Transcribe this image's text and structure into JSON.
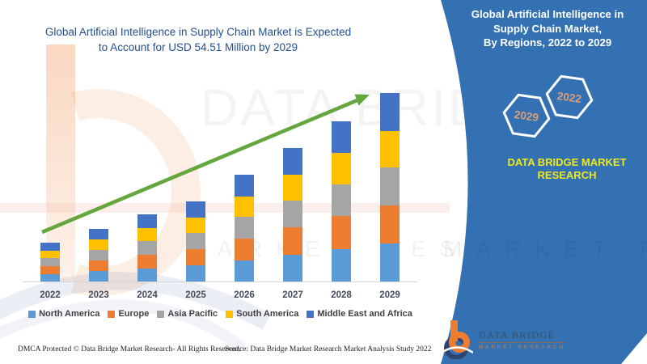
{
  "left_panel": {
    "title_line1": "Global Artificial Intelligence in Supply Chain Market is Expected",
    "title_line2": "to Account for USD 54.51 Million by 2029",
    "footer_left": "DMCA Protected © Data Bridge Market Research- All Rights Reserved.",
    "footer_source": "Source: Data Bridge Market Research Market Analysis Study 2022"
  },
  "chart_data": {
    "type": "bar",
    "stacked": true,
    "title": "Global Artificial Intelligence in Supply Chain Market is Expected to Account for USD 54.51 Million by 2029",
    "unit": "USD Million",
    "categories": [
      "2022",
      "2023",
      "2024",
      "2025",
      "2026",
      "2027",
      "2028",
      "2029"
    ],
    "series": [
      {
        "name": "North America",
        "color": "#5B9BD5",
        "values": [
          2.4,
          3.2,
          4.0,
          4.8,
          6.4,
          8.0,
          9.6,
          11.2
        ]
      },
      {
        "name": "Europe",
        "color": "#ED7D31",
        "values": [
          2.3,
          3.1,
          3.9,
          4.7,
          6.2,
          7.8,
          9.4,
          11.0
        ]
      },
      {
        "name": "Asia Pacific",
        "color": "#A5A5A5",
        "values": [
          2.3,
          3.1,
          4.0,
          4.7,
          6.2,
          7.8,
          9.3,
          11.0
        ]
      },
      {
        "name": "South America",
        "color": "#FFC000",
        "values": [
          2.1,
          2.9,
          3.7,
          4.4,
          5.9,
          7.4,
          8.9,
          10.4
        ]
      },
      {
        "name": "Middle East and Africa",
        "color": "#4472C4",
        "values": [
          2.3,
          3.0,
          3.9,
          4.6,
          6.2,
          7.7,
          9.2,
          10.91
        ]
      }
    ],
    "totals": [
      11.4,
      15.3,
      19.5,
      23.2,
      30.9,
      38.7,
      46.4,
      54.51
    ],
    "ylim": [
      0,
      56
    ],
    "grid": false,
    "legend_position": "bottom",
    "trend_arrow": true,
    "trend_arrow_color": "#64A73E"
  },
  "right_panel": {
    "background_color": "#3371B3",
    "title_lines": [
      "Global Artificial Intelligence in",
      "Supply Chain Market,",
      "By Regions, 2022 to 2029"
    ],
    "hexagons": [
      {
        "label": "2029"
      },
      {
        "label": "2022"
      }
    ],
    "hex_label_color": "#DD9E74",
    "brand_line1": "DATA BRIDGE MARKET",
    "brand_line2": "RESEARCH",
    "brand_color": "#F0E81C",
    "logo_name": "DATA BRIDGE",
    "logo_tagline": "MARKET RESEARCH"
  },
  "watermark": {
    "line1": "DATA BRIDGE",
    "line2": "MARKET RESEARCH"
  }
}
